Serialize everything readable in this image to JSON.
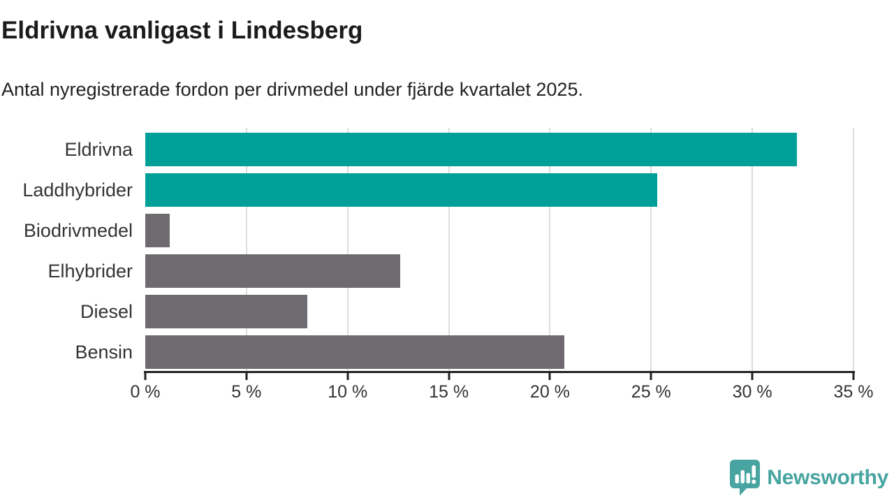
{
  "title": "Eldrivna vanligast i Lindesberg",
  "subtitle": "Antal nyregistrerade fordon per drivmedel under fjärde kvartalet 2025.",
  "chart_data": {
    "type": "bar",
    "orientation": "horizontal",
    "title": "Eldrivna vanligast i Lindesberg",
    "subtitle": "Antal nyregistrerade fordon per drivmedel under fjärde kvartalet 2025.",
    "categories": [
      "Eldrivna",
      "Laddhybrider",
      "Biodrivmedel",
      "Elhybrider",
      "Diesel",
      "Bensin"
    ],
    "values": [
      32.2,
      25.3,
      1.2,
      12.6,
      8.0,
      20.7
    ],
    "unit": "%",
    "xlim": [
      0,
      35
    ],
    "x_tick_values": [
      0,
      5,
      10,
      15,
      20,
      25,
      30,
      35
    ],
    "x_tick_labels": [
      "0 %",
      "5 %",
      "10 %",
      "15 %",
      "20 %",
      "25 %",
      "30 %",
      "35 %"
    ],
    "grid": "vertical-light-gray",
    "legend": "none",
    "bar_colors": [
      "#00a099",
      "#00a099",
      "#6e6a70",
      "#6e6a70",
      "#6e6a70",
      "#6e6a70"
    ]
  },
  "colors": {
    "highlight": "#00a099",
    "neutral": "#6e6a70",
    "grid": "#dddddd",
    "axis": "#222222",
    "text": "#333333",
    "brand": "#47a4a0"
  },
  "footer": {
    "brand": "Newsworthy",
    "logo_icon": "newsworthy-speech-bubble-chart-icon"
  }
}
